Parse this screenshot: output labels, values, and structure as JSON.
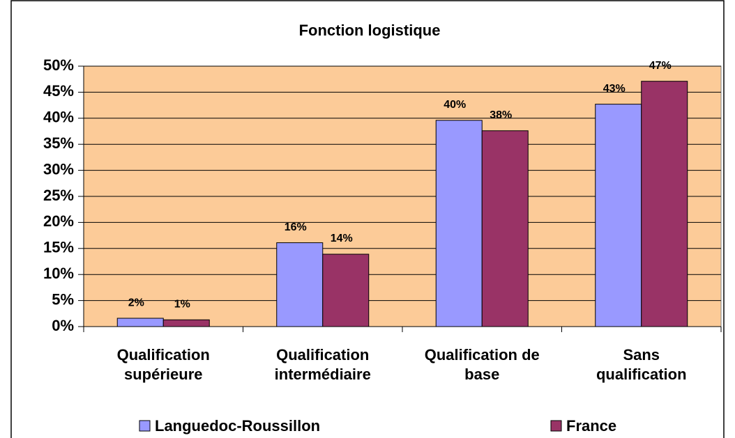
{
  "chart_data": {
    "type": "bar",
    "title": "Fonction logistique",
    "categories": [
      "Qualification\nsupérieure",
      "Qualification\nintermédiaire",
      "Qualification de\nbase",
      "Sans\nqualification"
    ],
    "series": [
      {
        "name": "Languedoc-Roussillon",
        "color": "#9999ff",
        "values": [
          1.6,
          16.1,
          39.6,
          42.7
        ],
        "value_labels": [
          "2%",
          "16%",
          "40%",
          "43%"
        ]
      },
      {
        "name": "France",
        "color": "#993366",
        "values": [
          1.3,
          13.9,
          37.6,
          47.1
        ],
        "value_labels": [
          "1%",
          "14%",
          "38%",
          "47%"
        ]
      }
    ],
    "ylim": [
      0,
      50
    ],
    "yticks": [
      {
        "value": 0,
        "label": "0%"
      },
      {
        "value": 5,
        "label": "5%"
      },
      {
        "value": 10,
        "label": "10%"
      },
      {
        "value": 15,
        "label": "15%"
      },
      {
        "value": 20,
        "label": "20%"
      },
      {
        "value": 25,
        "label": "25%"
      },
      {
        "value": 30,
        "label": "30%"
      },
      {
        "value": 35,
        "label": "35%"
      },
      {
        "value": 40,
        "label": "40%"
      },
      {
        "value": 45,
        "label": "45%"
      },
      {
        "value": 50,
        "label": "50%"
      }
    ],
    "grid": true,
    "plot_background": "#fccb98",
    "legend": "bottom"
  }
}
